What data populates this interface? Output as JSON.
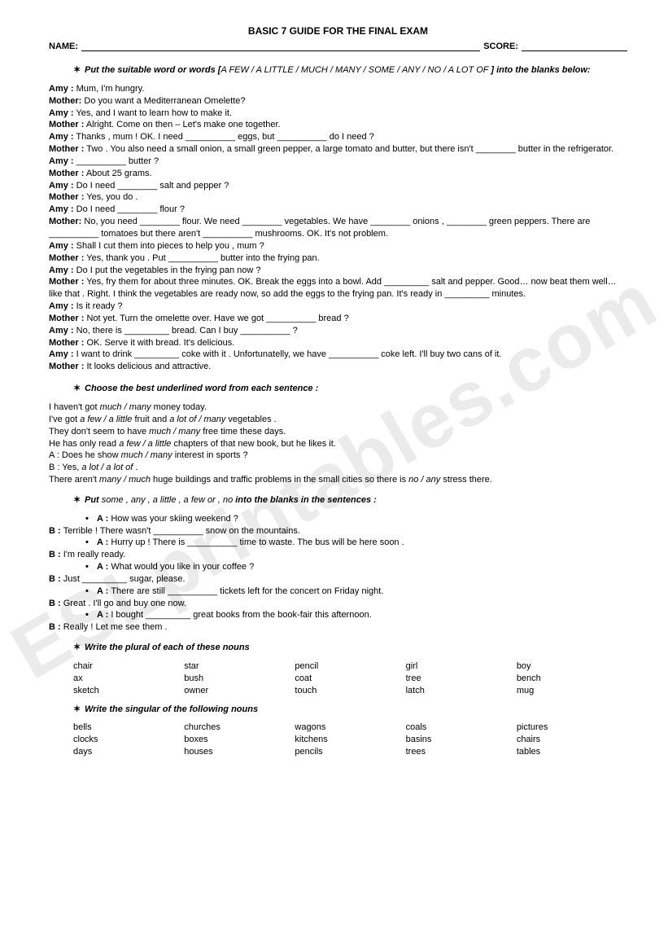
{
  "title": "BASIC 7 GUIDE FOR THE FINAL EXAM",
  "name_label": "NAME:",
  "score_label": "SCORE:",
  "watermark": "ESLprintables.com",
  "bullet_glyph": "✶",
  "dot_glyph": "•",
  "ex1": {
    "instruction_a": "Put the suitable word or words [",
    "instruction_b": "A FEW / A LITTLE / MUCH / MANY / SOME / ANY / NO / A LOT OF ",
    "instruction_c": "] into the blanks below:",
    "lines": [
      {
        "s": "Amy :",
        "t": " Mum, I'm hungry."
      },
      {
        "s": "Mother:",
        "t": " Do you want a Mediterranean Omelette?"
      },
      {
        "s": "Amy :",
        "t": " Yes, and I want to learn how to make it."
      },
      {
        "s": "Mother :",
        "t": " Alright. Come on then – Let's make one together."
      },
      {
        "s": "Amy :",
        "t": " Thanks , mum ! OK. I need __________ eggs, but __________ do I need ?"
      },
      {
        "s": "Mother :",
        "t": " Two . You also need a small onion, a small green pepper, a large tomato and butter, but there isn't ________ butter in the refrigerator."
      },
      {
        "s": "Amy :",
        "t": " __________ butter ?"
      },
      {
        "s": "Mother :",
        "t": " About 25 grams."
      },
      {
        "s": "Amy :",
        "t": " Do I need ________ salt and pepper ?"
      },
      {
        "s": "Mother :",
        "t": " Yes, you do ."
      },
      {
        "s": "Amy :",
        "t": " Do I need ________ flour ?"
      },
      {
        "s": "Mother:",
        "t": " No, you need ________ flour. We need ________ vegetables. We have ________ onions , ________ green peppers. There are __________ tomatoes but there aren't __________ mushrooms. OK. It's not problem."
      },
      {
        "s": "Amy :",
        "t": " Shall I cut them into pieces to help you , mum ?"
      },
      {
        "s": "Mother :",
        "t": " Yes, thank you . Put __________ butter into the frying pan."
      },
      {
        "s": "Amy :",
        "t": " Do I put the vegetables in the frying pan now ?"
      },
      {
        "s": "Mother :",
        "t": " Yes, fry them for about three minutes. OK. Break the eggs into a bowl. Add _________ salt and pepper. Good… now beat them well… like that . Right. I think the vegetables are ready now, so add the eggs to the frying pan. It's ready in _________ minutes."
      },
      {
        "s": "Amy :",
        "t": " Is it ready ?"
      },
      {
        "s": "Mother :",
        "t": " Not yet. Turn the omelette over. Have we got __________ bread ?"
      },
      {
        "s": "Amy :",
        "t": " No, there is _________ bread. Can I buy __________ ?"
      },
      {
        "s": "Mother :",
        "t": " OK. Serve it with bread. It's delicious."
      },
      {
        "s": "Amy :",
        "t": " I want to drink _________ coke with it . Unfortunatelly, we have __________ coke left. I'll buy two cans of it."
      },
      {
        "s": "Mother :",
        "t": " It looks delicious and attractive."
      }
    ]
  },
  "ex2": {
    "instruction": "Choose the best underlined word from each sentence :",
    "lines": [
      {
        "pre": "I haven't got ",
        "it": "much / many",
        "post": " money today."
      },
      {
        "pre": "I've got ",
        "it": "a few / a little",
        "mid": " fruit and ",
        "it2": "a lot of / many",
        "post": " vegetables ."
      },
      {
        "pre": "They don't seem to have ",
        "it": "much / many",
        "post": " free time these days."
      },
      {
        "pre": "He has only read ",
        "it": "a few / a little",
        "post": " chapters of that new book, but he likes it."
      },
      {
        "pre": "A : Does he show ",
        "it": "much / many",
        "post": " interest in sports ?"
      },
      {
        "pre": "B : Yes, ",
        "it": "a lot / a lot of",
        "post": " ."
      },
      {
        "pre": "There aren't ",
        "it": "many / much",
        "mid": " huge buildings and traffic problems in the small cities so there is ",
        "it2": "no / any",
        "post": " stress there."
      }
    ]
  },
  "ex3": {
    "instruction_a": "Put ",
    "instruction_b": "some , any , a little , a few or , no ",
    "instruction_c": "into the blanks in the sentences :",
    "pairs": [
      {
        "a": "How was your skiing weekend ?",
        "b": "Terrible ! There wasn't __________ snow on the mountains."
      },
      {
        "a": "Hurry up ! There is __________ time to waste. The bus will be here soon .",
        "b": "I'm really ready."
      },
      {
        "a": "What would you like in your coffee ?",
        "b": "Just _________ sugar, please."
      },
      {
        "a": "There are still __________ tickets left for the concert on Friday night.",
        "b": "Great . I'll go and buy one now."
      },
      {
        "a": "I bought _________ great books from the book-fair this afternoon.",
        "b": "Really ! Let me see them ."
      }
    ]
  },
  "ex4": {
    "instruction": "Write the plural of each of these nouns",
    "rows": [
      [
        "chair",
        "star",
        "pencil",
        "girl",
        "boy"
      ],
      [
        "ax",
        "bush",
        "coat",
        "tree",
        "bench"
      ],
      [
        "sketch",
        "owner",
        "touch",
        "latch",
        "mug"
      ]
    ]
  },
  "ex5": {
    "instruction": "Write the singular of the following nouns",
    "rows": [
      [
        "bells",
        "churches",
        "wagons",
        "coals",
        "pictures"
      ],
      [
        "clocks",
        "boxes",
        "kitchens",
        "basins",
        "chairs"
      ],
      [
        "days",
        "houses",
        "pencils",
        "trees",
        "tables"
      ]
    ]
  }
}
